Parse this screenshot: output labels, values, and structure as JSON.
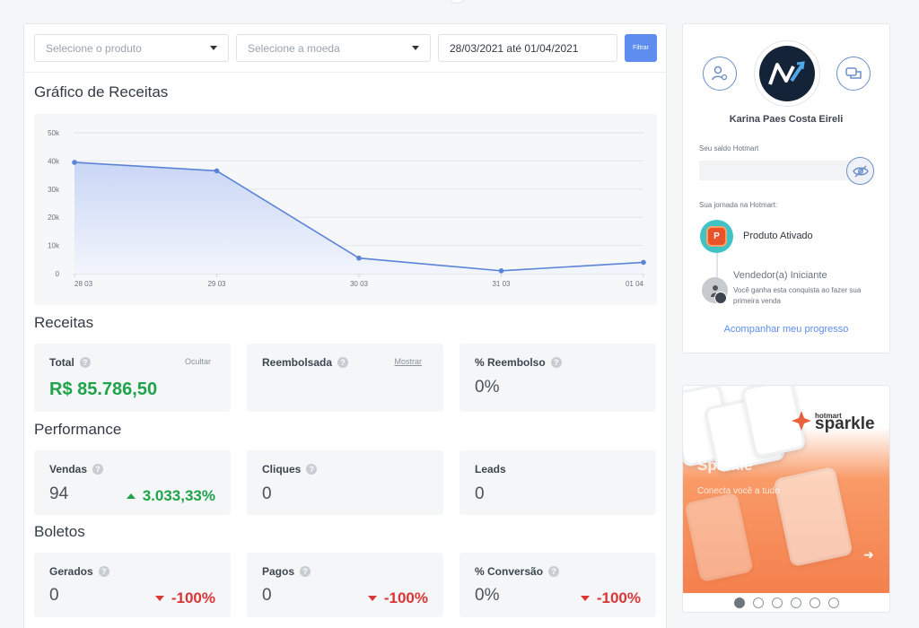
{
  "filters": {
    "product_placeholder": "Selecione o produto",
    "currency_placeholder": "Selecione a moeda",
    "date_range": "28/03/2021 até 01/04/2021",
    "filter_button": "Filtrar"
  },
  "chart_section": {
    "title": "Gráfico de Receitas"
  },
  "chart_data": {
    "type": "area",
    "title": "",
    "xlabel": "",
    "ylabel": "",
    "x": [
      "28 03",
      "29 03",
      "30 03",
      "31 03",
      "01 04"
    ],
    "y_ticks": [
      "0",
      "10k",
      "20k",
      "30k",
      "40k",
      "50k"
    ],
    "ylim": [
      0,
      50000
    ],
    "grid": true,
    "series": [
      {
        "values": [
          39500,
          36500,
          5500,
          1000,
          4000
        ]
      }
    ],
    "colors": {
      "line": "#5b84d6",
      "fill_top": "#c9d6f5",
      "fill_bottom": "#f2f5fc"
    }
  },
  "receitas": {
    "title": "Receitas",
    "total": {
      "label": "Total",
      "action": "Ocultar",
      "value": "R$ 85.786,50"
    },
    "reembolsada": {
      "label": "Reembolsada",
      "action": "Mostrar"
    },
    "reembolso_pct": {
      "label": "% Reembolso",
      "value": "0%"
    }
  },
  "performance": {
    "title": "Performance",
    "vendas": {
      "label": "Vendas",
      "value": "94",
      "delta": "3.033,33%"
    },
    "cliques": {
      "label": "Cliques",
      "value": "0"
    },
    "leads": {
      "label": "Leads",
      "value": "0"
    }
  },
  "boletos": {
    "title": "Boletos",
    "gerados": {
      "label": "Gerados",
      "value": "0",
      "delta": "-100%"
    },
    "pagos": {
      "label": "Pagos",
      "value": "0",
      "delta": "-100%"
    },
    "conversao": {
      "label": "% Conversão",
      "value": "0%",
      "delta": "-100%"
    }
  },
  "profile": {
    "name": "Karina Paes Costa Eireli",
    "balance_label": "Seu saldo Hotmart",
    "journey_label": "Sua jornada na Hotmart:",
    "step1": "Produto Ativado",
    "step2": "Vendedor(a) Iniciante",
    "step2_desc": "Você ganha esta conquista ao fazer sua primeira venda",
    "progress_link": "Acompanhar meu progresso"
  },
  "banner": {
    "brand_small": "hotmart",
    "brand_big": "sparkle",
    "title": "Sparkle",
    "subtitle": "Conecta você a tudo",
    "slides_active": 1,
    "slides_total": 6
  },
  "icons": [
    "help-icon",
    "caret-down-icon",
    "user-settings-icon",
    "chat-icon",
    "eye-off-icon",
    "lock-icon",
    "arrow-right-icon"
  ]
}
